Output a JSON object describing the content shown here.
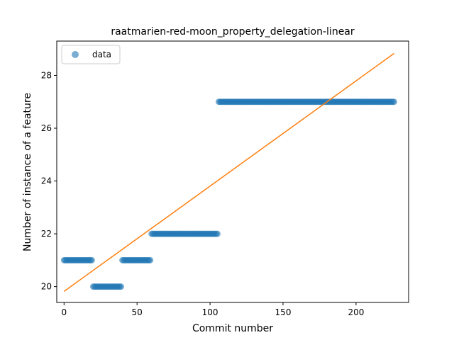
{
  "chart_data": {
    "type": "scatter",
    "title": "raatmarien-red-moon_property_delegation-linear",
    "xlabel": "Commit number",
    "ylabel": "Number of instance of a feature",
    "xlim": [
      -5,
      236
    ],
    "ylim": [
      19.4,
      29.3
    ],
    "xticks": [
      0,
      50,
      100,
      150,
      200
    ],
    "yticks": [
      20,
      22,
      24,
      26,
      28
    ],
    "grid": false,
    "legend": {
      "position": "top-left",
      "entries": [
        "data"
      ]
    },
    "colors": {
      "data": "#1f77b4",
      "fit": "#ff7f0e"
    },
    "data_segments": [
      {
        "x_start": 0,
        "x_end": 19,
        "y": 21
      },
      {
        "x_start": 20,
        "x_end": 39,
        "y": 20
      },
      {
        "x_start": 40,
        "x_end": 59,
        "y": 21
      },
      {
        "x_start": 60,
        "x_end": 105,
        "y": 22
      },
      {
        "x_start": 106,
        "x_end": 226,
        "y": 27
      }
    ],
    "fit_line": {
      "x": [
        0,
        226
      ],
      "y": [
        19.82,
        28.83
      ]
    }
  }
}
